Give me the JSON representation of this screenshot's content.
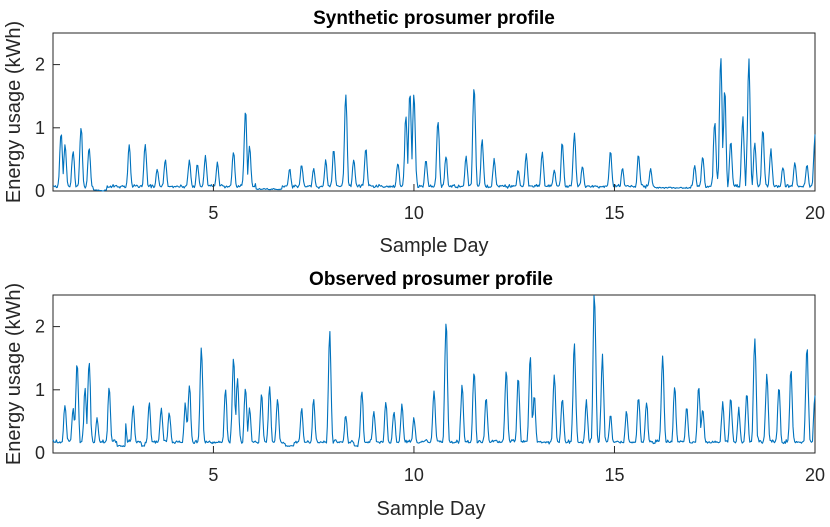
{
  "chart_data": [
    {
      "type": "line",
      "title": "Synthetic prosumer profile",
      "xlabel": "Sample Day",
      "ylabel": "Energy usage (kWh)",
      "xlim": [
        1,
        20
      ],
      "ylim": [
        0,
        2.5
      ],
      "xticks": [
        5,
        10,
        15,
        20
      ],
      "yticks": [
        0,
        1,
        2
      ],
      "line_color": "#0072bd",
      "peaks": [
        [
          1.2,
          0.92
        ],
        [
          1.3,
          0.75
        ],
        [
          1.5,
          0.65
        ],
        [
          1.7,
          1.03
        ],
        [
          1.9,
          0.68
        ],
        [
          2.9,
          0.73
        ],
        [
          3.3,
          0.72
        ],
        [
          3.6,
          0.35
        ],
        [
          3.8,
          0.5
        ],
        [
          4.4,
          0.48
        ],
        [
          4.6,
          0.42
        ],
        [
          4.8,
          0.55
        ],
        [
          5.1,
          0.45
        ],
        [
          5.5,
          0.63
        ],
        [
          5.8,
          1.27
        ],
        [
          5.9,
          0.72
        ],
        [
          6.1,
          0.5
        ],
        [
          6.9,
          0.35
        ],
        [
          7.2,
          0.42
        ],
        [
          7.5,
          0.35
        ],
        [
          7.8,
          0.48
        ],
        [
          8.0,
          0.65
        ],
        [
          8.3,
          1.58
        ],
        [
          8.5,
          0.5
        ],
        [
          8.8,
          0.68
        ],
        [
          9.6,
          0.45
        ],
        [
          9.8,
          1.2
        ],
        [
          9.9,
          1.6
        ],
        [
          10.0,
          1.5
        ],
        [
          10.3,
          0.5
        ],
        [
          10.6,
          1.12
        ],
        [
          10.8,
          0.55
        ],
        [
          11.3,
          0.55
        ],
        [
          11.5,
          1.65
        ],
        [
          11.7,
          0.8
        ],
        [
          12.0,
          0.5
        ],
        [
          12.6,
          0.33
        ],
        [
          12.8,
          0.58
        ],
        [
          13.2,
          0.62
        ],
        [
          13.5,
          0.32
        ],
        [
          13.7,
          0.78
        ],
        [
          14.0,
          0.92
        ],
        [
          14.2,
          0.4
        ],
        [
          14.9,
          0.62
        ],
        [
          15.2,
          0.35
        ],
        [
          15.6,
          0.58
        ],
        [
          15.9,
          0.35
        ],
        [
          16.1,
          0.55
        ],
        [
          16.6,
          0.2
        ],
        [
          17.0,
          0.4
        ],
        [
          17.2,
          0.55
        ],
        [
          17.5,
          1.12
        ],
        [
          17.65,
          2.12
        ],
        [
          17.75,
          1.55
        ],
        [
          17.9,
          0.8
        ],
        [
          18.2,
          1.15
        ],
        [
          18.35,
          2.07
        ],
        [
          18.5,
          0.75
        ],
        [
          18.7,
          0.98
        ],
        [
          18.9,
          0.65
        ],
        [
          19.2,
          0.38
        ],
        [
          19.5,
          0.45
        ],
        [
          19.8,
          0.42
        ],
        [
          20.0,
          0.88
        ]
      ],
      "rests": [
        [
          2.0,
          2.35,
          0.0
        ],
        [
          6.05,
          6.7,
          0.02
        ],
        [
          16.0,
          16.9,
          0.04
        ]
      ]
    },
    {
      "type": "line",
      "title": "Observed prosumer profile",
      "xlabel": "Sample Day",
      "ylabel": "Energy usage (kWh)",
      "xlim": [
        1,
        20
      ],
      "ylim": [
        0,
        2.5
      ],
      "xticks": [
        5,
        10,
        15,
        20
      ],
      "yticks": [
        0,
        1,
        2
      ],
      "line_color": "#0072bd",
      "peaks": [
        [
          1.3,
          0.78
        ],
        [
          1.5,
          0.7
        ],
        [
          1.6,
          1.48
        ],
        [
          1.8,
          1.0
        ],
        [
          1.9,
          1.5
        ],
        [
          2.1,
          0.55
        ],
        [
          2.4,
          1.03
        ],
        [
          2.8,
          0.5
        ],
        [
          3.0,
          0.75
        ],
        [
          3.4,
          0.78
        ],
        [
          3.7,
          0.72
        ],
        [
          3.9,
          0.65
        ],
        [
          4.3,
          0.78
        ],
        [
          4.4,
          1.1
        ],
        [
          4.7,
          1.68
        ],
        [
          5.3,
          1.0
        ],
        [
          5.5,
          1.52
        ],
        [
          5.6,
          1.2
        ],
        [
          5.8,
          1.05
        ],
        [
          5.9,
          0.7
        ],
        [
          6.2,
          0.92
        ],
        [
          6.4,
          1.05
        ],
        [
          6.6,
          0.85
        ],
        [
          7.2,
          0.7
        ],
        [
          7.5,
          0.85
        ],
        [
          7.9,
          1.9
        ],
        [
          8.3,
          0.6
        ],
        [
          8.7,
          1.0
        ],
        [
          9.0,
          0.65
        ],
        [
          9.3,
          0.82
        ],
        [
          9.5,
          0.65
        ],
        [
          9.7,
          0.75
        ],
        [
          10.0,
          0.55
        ],
        [
          10.5,
          1.0
        ],
        [
          10.8,
          2.13
        ],
        [
          11.2,
          1.05
        ],
        [
          11.5,
          1.32
        ],
        [
          11.8,
          0.9
        ],
        [
          12.3,
          1.3
        ],
        [
          12.6,
          1.2
        ],
        [
          12.9,
          1.55
        ],
        [
          13.0,
          0.9
        ],
        [
          13.5,
          1.2
        ],
        [
          13.7,
          0.88
        ],
        [
          14.0,
          1.72
        ],
        [
          14.3,
          0.82
        ],
        [
          14.5,
          2.55
        ],
        [
          14.7,
          1.55
        ],
        [
          14.9,
          0.6
        ],
        [
          15.3,
          0.65
        ],
        [
          15.6,
          0.9
        ],
        [
          15.8,
          0.8
        ],
        [
          16.2,
          1.55
        ],
        [
          16.5,
          1.05
        ],
        [
          16.8,
          0.72
        ],
        [
          17.1,
          1.05
        ],
        [
          17.2,
          0.7
        ],
        [
          17.7,
          0.8
        ],
        [
          17.9,
          0.85
        ],
        [
          18.1,
          0.7
        ],
        [
          18.3,
          0.95
        ],
        [
          18.5,
          1.88
        ],
        [
          18.8,
          1.25
        ],
        [
          19.1,
          1.05
        ],
        [
          19.4,
          1.3
        ],
        [
          19.8,
          1.72
        ],
        [
          20.0,
          0.9
        ]
      ],
      "rests": [
        [
          2.6,
          2.8,
          0.1
        ],
        [
          3.2,
          3.3,
          0.1
        ],
        [
          6.8,
          7.0,
          0.1
        ],
        [
          8.5,
          8.6,
          0.1
        ]
      ]
    }
  ]
}
